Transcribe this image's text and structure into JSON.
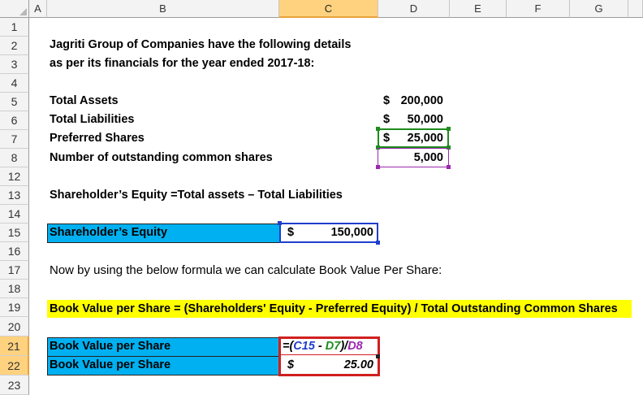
{
  "columns": [
    "A",
    "B",
    "C",
    "D",
    "E",
    "F",
    "G"
  ],
  "rows": [
    "1",
    "2",
    "3",
    "4",
    "5",
    "6",
    "7",
    "8",
    "12",
    "13",
    "14",
    "15",
    "16",
    "17",
    "18",
    "19",
    "20",
    "21",
    "22",
    "23"
  ],
  "intro": {
    "line1": "Jagriti Group of Companies have the following details",
    "line2": "as per its financials for the year ended 2017-18:"
  },
  "details": [
    {
      "label": "Total Assets",
      "currency": "$",
      "value": "200,000"
    },
    {
      "label": "Total Liabilities",
      "currency": "$",
      "value": "50,000"
    },
    {
      "label": "Preferred Shares",
      "currency": "$",
      "value": "25,000"
    },
    {
      "label": "Number of outstanding common shares",
      "currency": "",
      "value": "5,000"
    }
  ],
  "equity_formula": "Shareholder’s Equity =Total assets – Total Liabilities",
  "equity_row": {
    "label": "Shareholder’s Equity",
    "currency": "$",
    "value": "150,000"
  },
  "note": "Now by using the below formula we can calculate Book Value Per Share:",
  "bvps_formula": "Book Value per Share = (Shareholders' Equity - Preferred Equity) / Total Outstanding Common Shares",
  "bvps_rows": [
    {
      "label": "Book Value per Share"
    },
    {
      "label": "Book Value per Share",
      "currency": "$",
      "value": "25.00"
    }
  ],
  "cell_formula": {
    "open": "=(",
    "ref1": "C15",
    "minus": " - ",
    "ref2": "D7",
    "close": ")/",
    "ref3": "D8"
  },
  "colors": {
    "header_selected": "#ffd27f",
    "label_fill": "#00b0f0",
    "highlight": "#ffff00",
    "ref1": "#1f3fcc",
    "ref2": "#1e8c1e",
    "ref3": "#9c27b0",
    "active_border": "#d01f1f"
  }
}
